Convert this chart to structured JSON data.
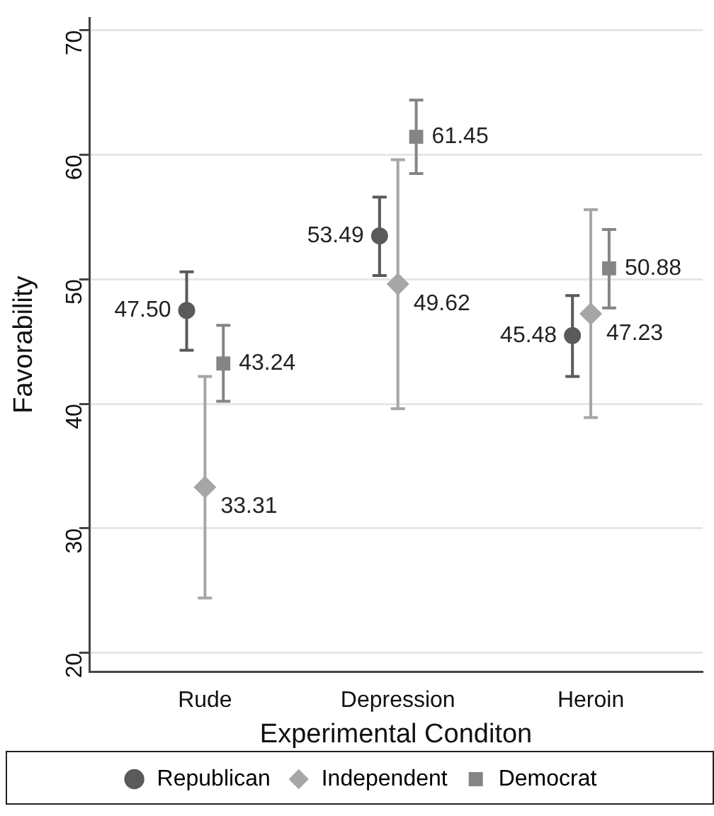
{
  "chart_data": {
    "type": "scatter",
    "xlabel": "Experimental Conditon",
    "ylabel": "Favorability",
    "categories": [
      "Rude",
      "Depression",
      "Heroin"
    ],
    "series": [
      {
        "name": "Republican",
        "color": "#5a5a5a",
        "marker": "circle",
        "values": [
          47.5,
          53.49,
          45.48
        ],
        "value_labels": [
          "47.50",
          "53.49",
          "45.48"
        ],
        "errors": [
          [
            44.3,
            50.6
          ],
          [
            50.3,
            56.6
          ],
          [
            42.2,
            48.7
          ]
        ]
      },
      {
        "name": "Independent",
        "color": "#a6a6a6",
        "marker": "diamond",
        "values": [
          33.31,
          49.62,
          47.23
        ],
        "value_labels": [
          "33.31",
          "49.62",
          "47.23"
        ],
        "errors": [
          [
            24.4,
            42.2
          ],
          [
            39.6,
            59.6
          ],
          [
            38.9,
            55.6
          ]
        ]
      },
      {
        "name": "Democrat",
        "color": "#858585",
        "marker": "square",
        "values": [
          43.24,
          61.45,
          50.88
        ],
        "value_labels": [
          "43.24",
          "61.45",
          "50.88"
        ],
        "errors": [
          [
            40.2,
            46.3
          ],
          [
            58.5,
            64.4
          ],
          [
            47.7,
            54.0
          ]
        ]
      }
    ],
    "ylim": [
      18.5,
      71
    ],
    "yticks": [
      20,
      30,
      40,
      50,
      60,
      70
    ],
    "grid": "y",
    "legend": "bottom"
  }
}
